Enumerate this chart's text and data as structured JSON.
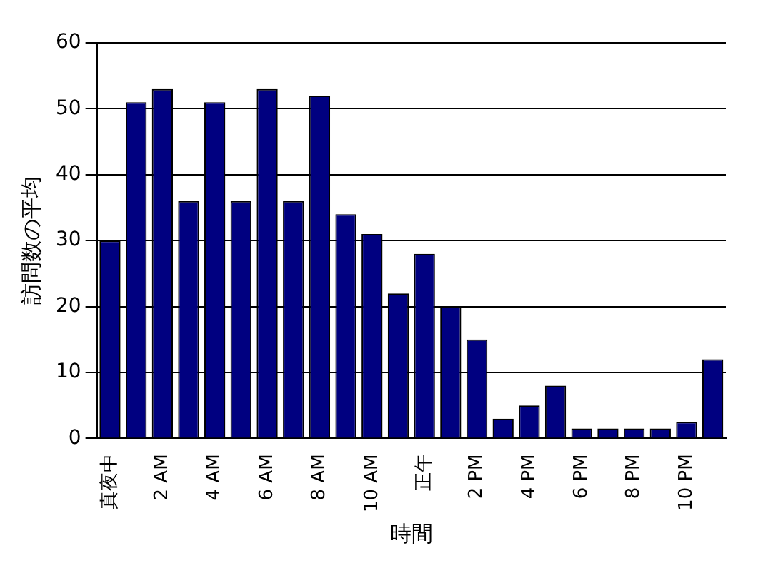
{
  "chart_data": {
    "type": "bar",
    "xlabel": "時間",
    "ylabel": "訪問数の平均",
    "categories": [
      "真夜中",
      null,
      "2 AM",
      null,
      "4 AM",
      null,
      "6 AM",
      null,
      "8 AM",
      null,
      "10 AM",
      null,
      "正午",
      null,
      "2 PM",
      null,
      "4 PM",
      null,
      "6 PM",
      null,
      "8 PM",
      null,
      "10 PM",
      null
    ],
    "values": [
      30,
      51,
      53,
      36,
      51,
      36,
      53,
      36,
      52,
      34,
      31,
      22,
      28,
      20,
      15,
      3,
      5,
      8,
      1.5,
      1.5,
      1.5,
      1.5,
      2.5,
      12
    ],
    "color": "#000080",
    "ylim": [
      0,
      60
    ],
    "yticks": [
      0,
      10,
      20,
      30,
      40,
      50,
      60
    ],
    "grid": "y",
    "legend": false
  }
}
